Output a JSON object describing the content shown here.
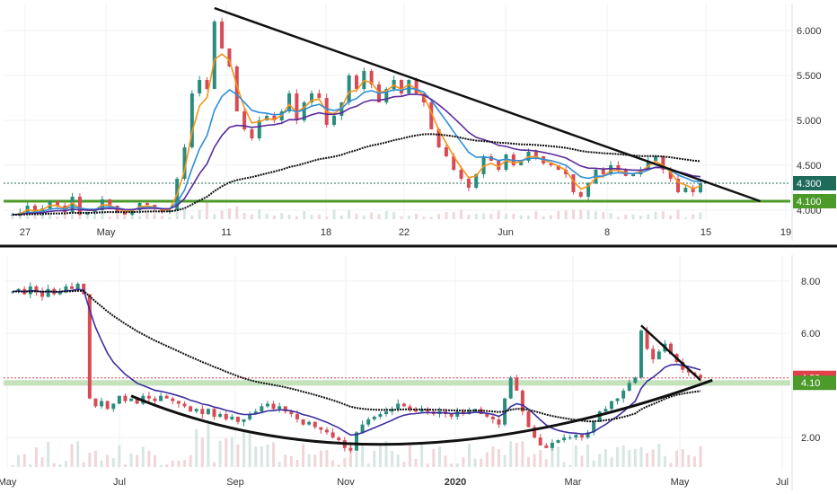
{
  "chart_data": [
    {
      "type": "candlestick",
      "panel": "top",
      "title": "",
      "xlabel": "",
      "ylabel": "",
      "ylim": [
        3.9,
        6.3
      ],
      "x_tick_labels": [
        "27",
        "May",
        "11",
        "18",
        "22",
        "Jun",
        "8",
        "15",
        "19"
      ],
      "y_tick_labels": [
        "4.000",
        "4.500",
        "5.000",
        "5.500",
        "6.000"
      ],
      "y_ticks": [
        4.0,
        4.5,
        5.0,
        5.5,
        6.0
      ],
      "price_labels": [
        {
          "text": "4.300",
          "value": 4.3,
          "color": "#1e6b5a"
        },
        {
          "text": "4.100",
          "value": 4.1,
          "color": "#4c9a2a"
        }
      ],
      "candles_close": [
        3.95,
        3.97,
        4.05,
        3.98,
        4.02,
        4.1,
        4.05,
        3.98,
        4.15,
        3.95,
        3.98,
        4.0,
        4.12,
        4.05,
        3.98,
        3.95,
        4.0,
        4.08,
        4.06,
        4.02,
        3.98,
        4.0,
        4.35,
        4.7,
        5.3,
        5.45,
        5.35,
        6.1,
        5.8,
        5.6,
        5.1,
        4.9,
        4.8,
        5.0,
        5.05,
        5.0,
        5.1,
        5.3,
        5.0,
        5.2,
        5.3,
        5.25,
        4.95,
        5.05,
        5.2,
        5.5,
        5.35,
        5.55,
        5.4,
        5.2,
        5.35,
        5.45,
        5.3,
        5.45,
        5.3,
        5.2,
        4.9,
        4.7,
        4.6,
        4.45,
        4.35,
        4.25,
        4.4,
        4.6,
        4.55,
        4.45,
        4.62,
        4.5,
        4.55,
        4.65,
        4.6,
        4.52,
        4.5,
        4.45,
        4.4,
        4.2,
        4.15,
        4.3,
        4.45,
        4.4,
        4.5,
        4.45,
        4.38,
        4.4,
        4.45,
        4.55,
        4.6,
        4.45,
        4.35,
        4.2,
        4.25,
        4.2,
        4.3
      ],
      "series": [
        {
          "values_key": "ema_fast",
          "color": "#f7931a"
        },
        {
          "values_key": "ema_mid",
          "color": "#2f8ed8"
        },
        {
          "values_key": "ema_slow",
          "color": "#5b2a9c"
        },
        {
          "values_key": "ema_long",
          "color": "#111111"
        }
      ],
      "trendlines": [
        {
          "from": {
            "i": 27,
            "v": 6.25
          },
          "to": {
            "i": 100,
            "v": 4.1
          },
          "color": "#111111"
        }
      ],
      "hlines": [
        {
          "value": 4.3,
          "color": "#1e6b5a",
          "style": "dotted"
        },
        {
          "value": 4.1,
          "color": "#4c9a2a",
          "style": "solid"
        }
      ],
      "grid": true
    },
    {
      "type": "candlestick",
      "panel": "bottom",
      "title": "",
      "xlabel": "",
      "ylabel": "",
      "ylim": [
        0.8,
        9.0
      ],
      "x_tick_labels": [
        "May",
        "Jul",
        "Sep",
        "Nov",
        "2020",
        "Mar",
        "May",
        "Jul"
      ],
      "y_tick_labels": [
        "2.00",
        "4.00",
        "6.00",
        "8.00"
      ],
      "y_ticks": [
        2.0,
        4.0,
        6.0,
        8.0
      ],
      "price_labels": [
        {
          "text": "4.29",
          "value": 4.29,
          "color": "#e0414b"
        },
        {
          "text": "4.10",
          "value": 4.1,
          "color": "#4c9a2a"
        }
      ],
      "candles_close": [
        7.6,
        7.7,
        7.5,
        7.8,
        7.6,
        7.4,
        7.7,
        7.5,
        7.6,
        7.8,
        7.7,
        7.9,
        7.5,
        3.5,
        3.2,
        3.4,
        3.1,
        3.3,
        3.6,
        3.4,
        3.5,
        3.3,
        3.6,
        3.5,
        3.4,
        3.6,
        3.5,
        3.4,
        3.3,
        3.2,
        3.0,
        3.1,
        2.9,
        3.1,
        2.8,
        2.9,
        2.7,
        2.8,
        2.6,
        2.7,
        2.9,
        3.0,
        3.2,
        3.3,
        3.1,
        3.2,
        3.0,
        2.9,
        2.7,
        2.5,
        2.6,
        2.4,
        2.3,
        2.2,
        2.0,
        1.9,
        1.6,
        1.5,
        2.2,
        2.5,
        2.7,
        2.8,
        2.9,
        3.0,
        3.1,
        3.3,
        3.2,
        3.1,
        3.0,
        3.1,
        3.0,
        2.9,
        3.0,
        2.9,
        2.8,
        3.0,
        2.9,
        3.0,
        3.1,
        2.9,
        2.8,
        2.7,
        2.5,
        3.5,
        4.3,
        3.8,
        3.0,
        2.4,
        2.0,
        1.7,
        1.6,
        1.8,
        1.9,
        2.0,
        2.0,
        2.1,
        2.0,
        2.2,
        2.6,
        3.0,
        3.1,
        3.4,
        3.5,
        3.8,
        4.1,
        4.3,
        6.1,
        5.4,
        5.0,
        5.3,
        5.6,
        5.2,
        4.9,
        4.6,
        4.5,
        4.4,
        4.29
      ],
      "series": [
        {
          "values_key": "ma_mid",
          "color": "#3b2ea0"
        },
        {
          "values_key": "ma_long",
          "color": "#111111"
        }
      ],
      "trendlines": [
        {
          "from": {
            "i": 106,
            "v": 6.3
          },
          "to": {
            "i": 116,
            "v": 4.2
          },
          "color": "#111111"
        }
      ],
      "curves": [
        {
          "name": "",
          "kind": "cup",
          "color": "#111111"
        }
      ],
      "hlines": [
        {
          "value": 4.29,
          "color": "#e0414b",
          "style": "dotted"
        },
        {
          "value": 4.1,
          "color": "#4c9a2a",
          "style": "band"
        }
      ],
      "grid": true
    }
  ]
}
